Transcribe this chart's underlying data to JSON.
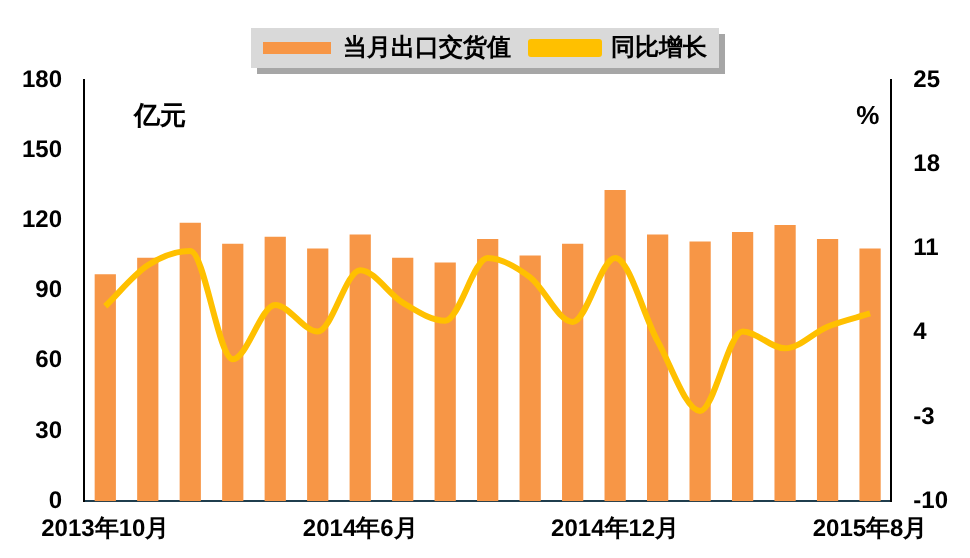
{
  "chart_data": {
    "type": "bar",
    "categories": [
      "2013年10月",
      null,
      null,
      null,
      null,
      null,
      "2014年6月",
      null,
      null,
      null,
      null,
      null,
      "2014年12月",
      null,
      null,
      null,
      null,
      null,
      "2015年8月"
    ],
    "series": [
      {
        "name": "当月出口交货值",
        "color": "#f79646",
        "values": [
          97,
          104,
          119,
          110,
          113,
          108,
          114,
          104,
          102,
          112,
          105,
          110,
          133,
          114,
          111,
          115,
          118,
          112,
          108
        ]
      },
      {
        "name": "同比增长",
        "type": "line",
        "axis": "y2",
        "color": "#ffc000",
        "values": [
          6.2,
          9.6,
          10.8,
          1.8,
          6.3,
          4.1,
          9.2,
          6.5,
          5.0,
          10.2,
          8.6,
          4.9,
          10.2,
          3.3,
          -2.5,
          4.1,
          2.7,
          4.5,
          5.6
        ]
      }
    ],
    "ylabel": "亿元",
    "y2label": "%",
    "ylim": [
      0,
      180
    ],
    "yticks": [
      0,
      30,
      60,
      90,
      120,
      150,
      180
    ],
    "y2lim": [
      -10,
      25
    ],
    "y2ticks": [
      -10,
      -3,
      4,
      11,
      18,
      25
    ],
    "grid": false,
    "legend": "top",
    "marker": "none"
  }
}
